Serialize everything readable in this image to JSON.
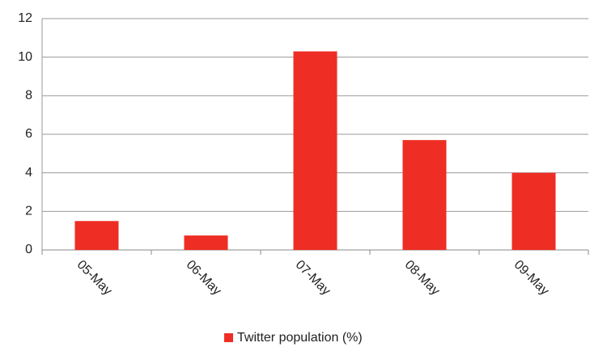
{
  "chart_data": {
    "type": "bar",
    "categories": [
      "05-May",
      "06-May",
      "07-May",
      "08-May",
      "09-May"
    ],
    "series": [
      {
        "name": "Twitter population (%)",
        "color": "#ee2e24",
        "values": [
          1.5,
          0.75,
          10.3,
          5.7,
          4.0
        ]
      }
    ],
    "ylim": [
      0,
      12
    ],
    "yticks": [
      0,
      2,
      4,
      6,
      8,
      10,
      12
    ],
    "grid": true,
    "legend": "bottom"
  }
}
